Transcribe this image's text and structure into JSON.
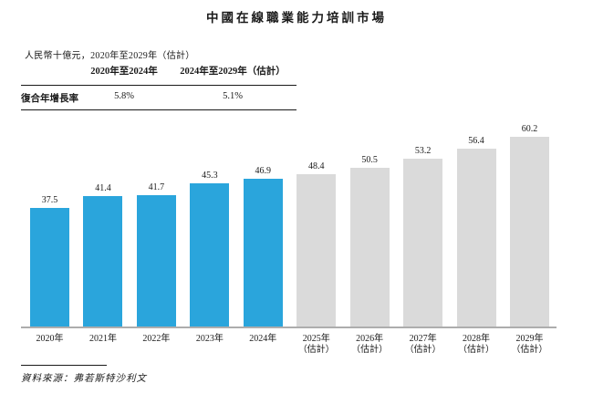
{
  "title": "中國在線職業能力培訓市場",
  "subtitle": "人民幣十億元，2020年至2029年（估計）",
  "cagr_table": {
    "row_label": "復合年增長率",
    "columns": [
      "2020年至2024年",
      "2024年至2029年（估計）"
    ],
    "values": [
      "5.8%",
      "5.1%"
    ]
  },
  "source": "資料來源：弗若斯特沙利文",
  "chart_data": {
    "type": "bar",
    "title": "中國在線職業能力培訓市場",
    "unit_label": "人民幣十億元",
    "period_label": "2020年至2029年（估計）",
    "ylim": [
      0,
      66
    ],
    "grid": false,
    "legend": "none",
    "bars": [
      {
        "label": "2020年",
        "sublabel": "",
        "value": 37.5,
        "kind": "actual"
      },
      {
        "label": "2021年",
        "sublabel": "",
        "value": 41.4,
        "kind": "actual"
      },
      {
        "label": "2022年",
        "sublabel": "",
        "value": 41.7,
        "kind": "actual"
      },
      {
        "label": "2023年",
        "sublabel": "",
        "value": 45.3,
        "kind": "actual"
      },
      {
        "label": "2024年",
        "sublabel": "",
        "value": 46.9,
        "kind": "actual"
      },
      {
        "label": "2025年",
        "sublabel": "（估計）",
        "value": 48.4,
        "kind": "estimate"
      },
      {
        "label": "2026年",
        "sublabel": "（估計）",
        "value": 50.5,
        "kind": "estimate"
      },
      {
        "label": "2027年",
        "sublabel": "（估計）",
        "value": 53.2,
        "kind": "estimate"
      },
      {
        "label": "2028年",
        "sublabel": "（估計）",
        "value": 56.4,
        "kind": "estimate"
      },
      {
        "label": "2029年",
        "sublabel": "（估計）",
        "value": 60.2,
        "kind": "estimate"
      }
    ],
    "colors": {
      "actual": "#2AA5DC",
      "estimate": "#DADADA",
      "axis": "#ADADAD"
    }
  }
}
